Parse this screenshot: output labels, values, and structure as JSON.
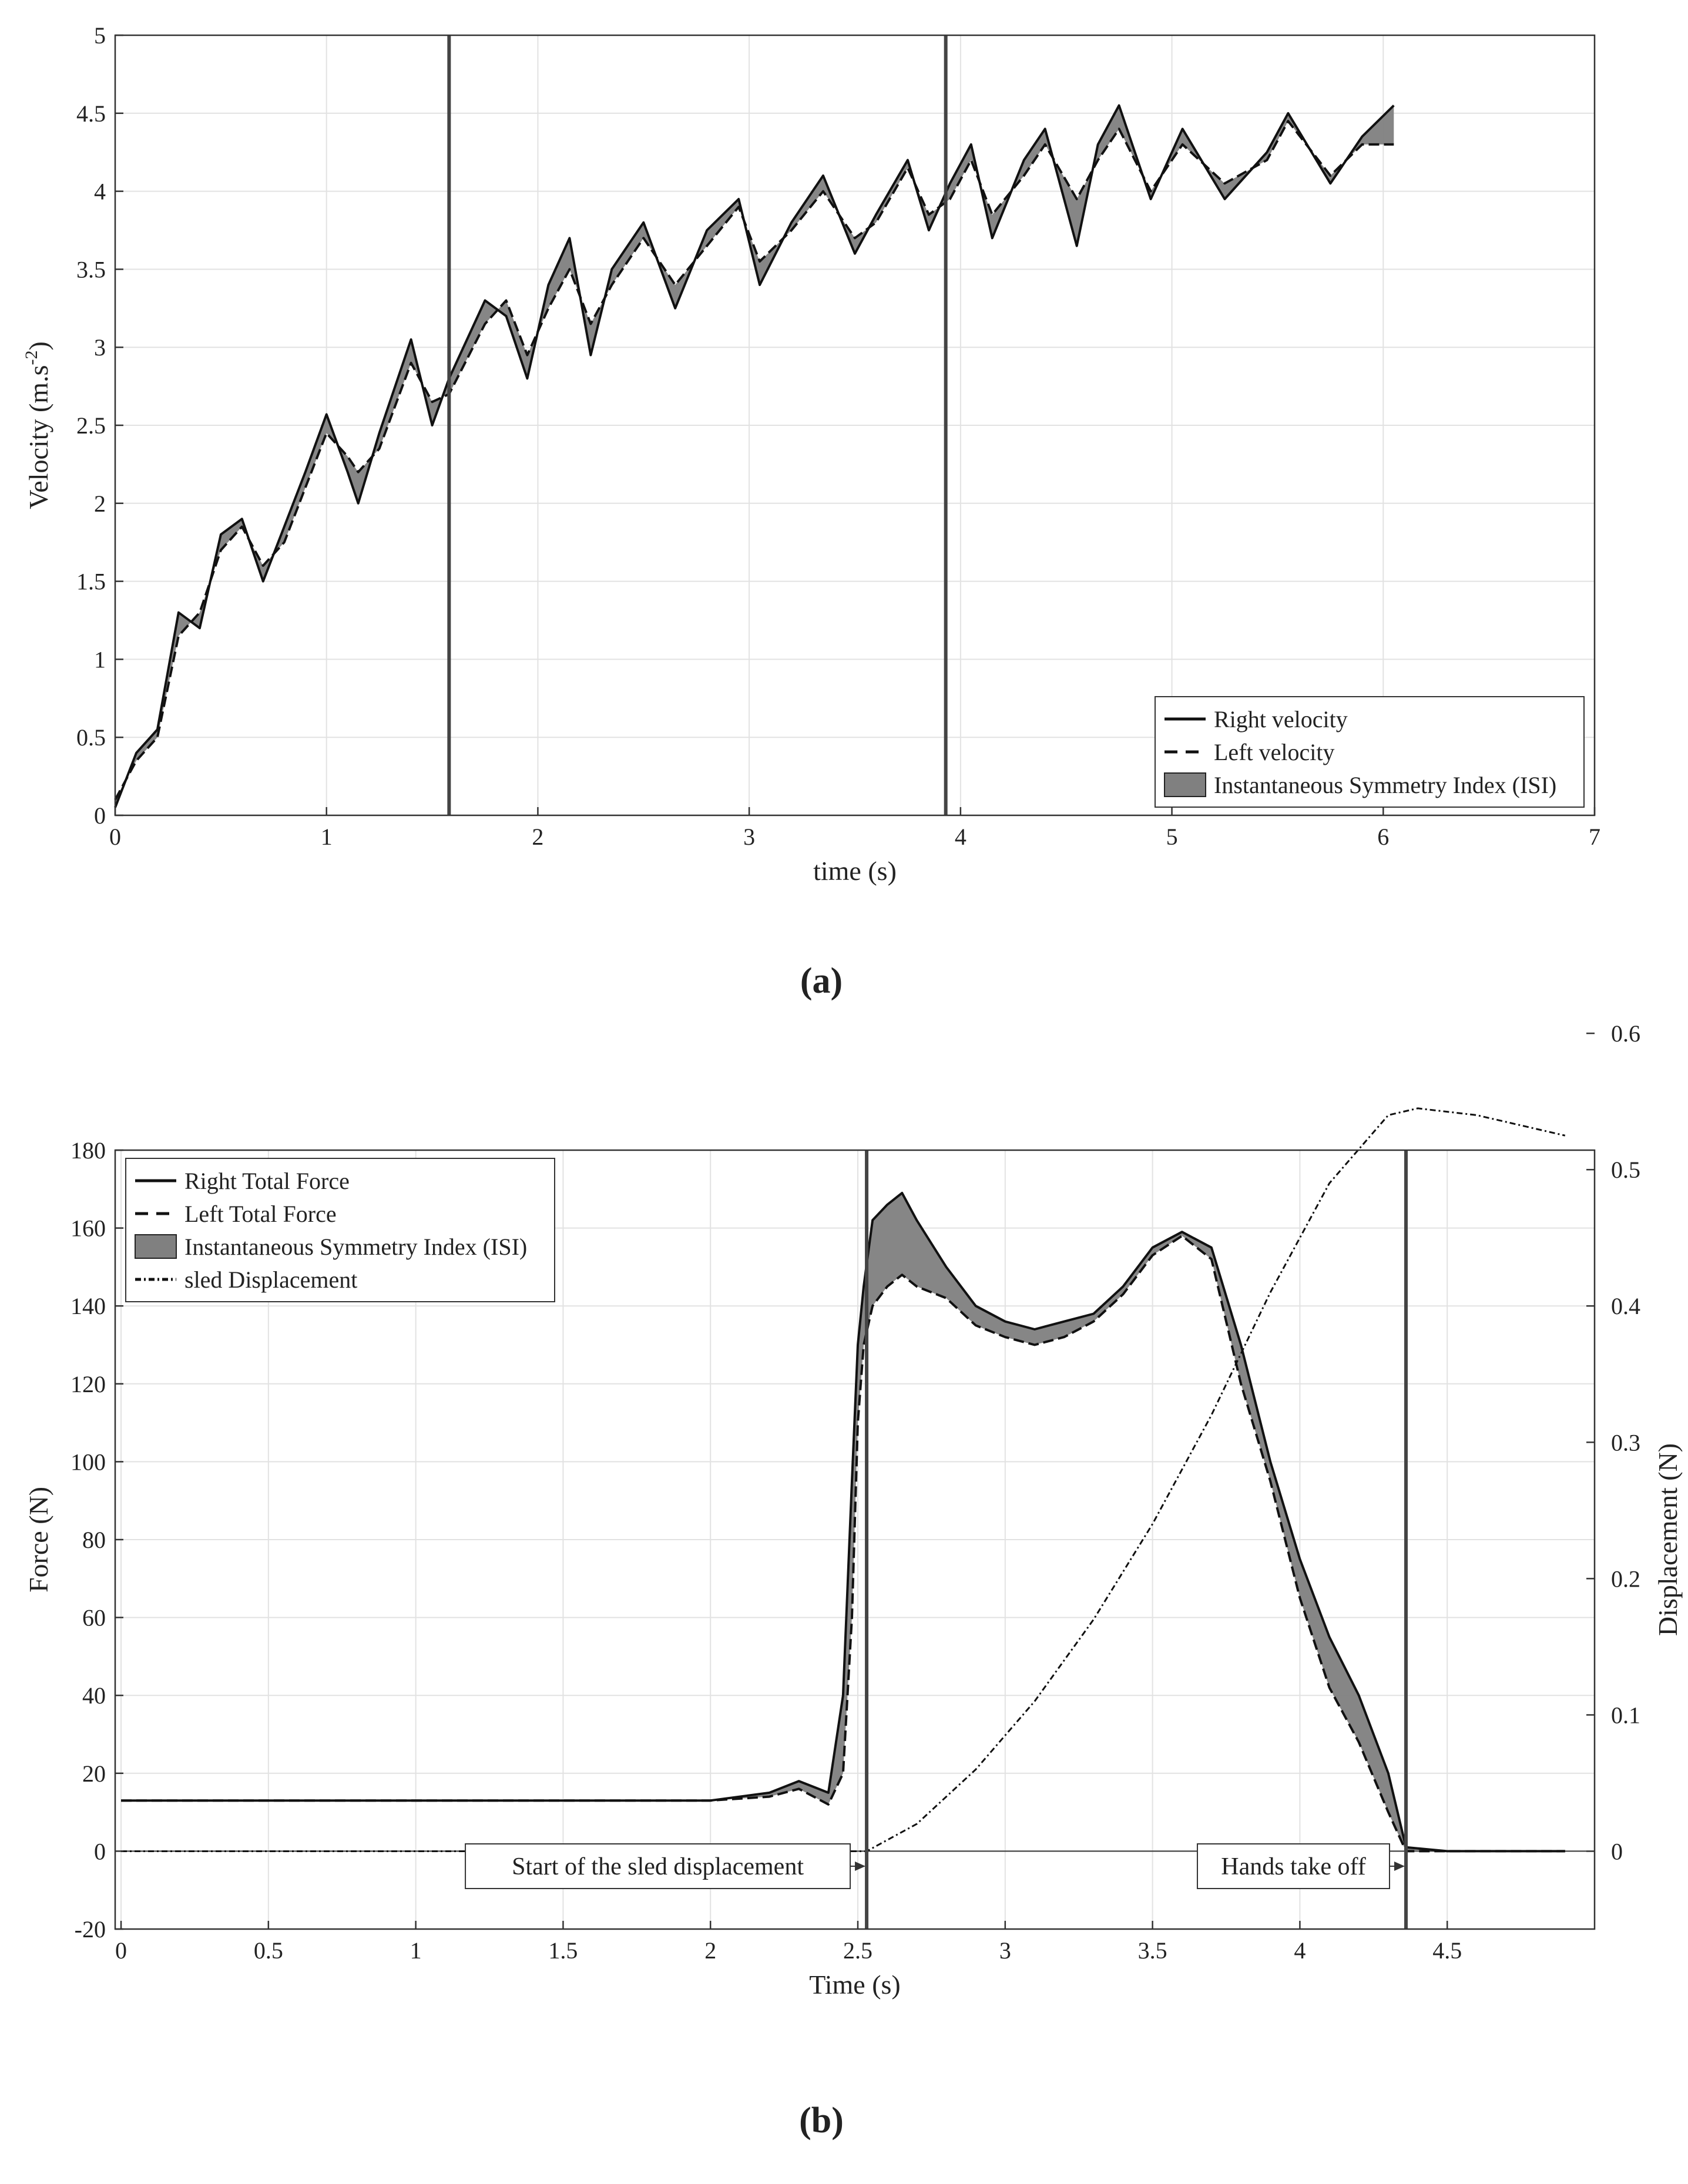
{
  "chart_data": [
    {
      "type": "line",
      "panel_label": "(a)",
      "xlabel": "time (s)",
      "ylabel": "Velocity (m.s",
      "ylabel_superscript": "-2",
      "ylabel_close": ")",
      "xlim": [
        0,
        7
      ],
      "ylim": [
        0,
        5
      ],
      "xticks": [
        0,
        1,
        2,
        3,
        4,
        5,
        6,
        7
      ],
      "yticks": [
        0,
        0.5,
        1,
        1.5,
        2,
        2.5,
        3,
        3.5,
        4,
        4.5,
        5
      ],
      "grid": true,
      "legend_position": "bottom-right",
      "vertical_lines": [
        1.58,
        3.93
      ],
      "series": [
        {
          "name": "Right velocity",
          "style": "solid",
          "x": [
            0,
            0.1,
            0.2,
            0.3,
            0.4,
            0.5,
            0.6,
            0.7,
            0.8,
            0.9,
            1.0,
            1.1,
            1.15,
            1.25,
            1.4,
            1.5,
            1.58,
            1.75,
            1.85,
            1.95,
            2.05,
            2.15,
            2.25,
            2.35,
            2.5,
            2.65,
            2.8,
            2.95,
            3.05,
            3.2,
            3.35,
            3.5,
            3.6,
            3.75,
            3.85,
            3.95,
            4.05,
            4.15,
            4.3,
            4.4,
            4.55,
            4.65,
            4.75,
            4.9,
            5.05,
            5.25,
            5.45,
            5.55,
            5.75,
            5.9,
            6.05
          ],
          "y": [
            0.05,
            0.4,
            0.55,
            1.3,
            1.2,
            1.8,
            1.9,
            1.5,
            1.85,
            2.2,
            2.57,
            2.2,
            2.0,
            2.45,
            3.05,
            2.5,
            2.8,
            3.3,
            3.2,
            2.8,
            3.4,
            3.7,
            2.95,
            3.5,
            3.8,
            3.25,
            3.75,
            3.95,
            3.4,
            3.8,
            4.1,
            3.6,
            3.85,
            4.2,
            3.75,
            4.05,
            4.3,
            3.7,
            4.2,
            4.4,
            3.65,
            4.3,
            4.55,
            3.95,
            4.4,
            3.95,
            4.25,
            4.5,
            4.05,
            4.35,
            4.55
          ]
        },
        {
          "name": "Left velocity",
          "style": "dashed",
          "x": [
            0,
            0.1,
            0.2,
            0.3,
            0.4,
            0.5,
            0.6,
            0.7,
            0.8,
            0.9,
            1.0,
            1.1,
            1.15,
            1.25,
            1.4,
            1.5,
            1.58,
            1.75,
            1.85,
            1.95,
            2.05,
            2.15,
            2.25,
            2.35,
            2.5,
            2.65,
            2.8,
            2.95,
            3.05,
            3.2,
            3.35,
            3.5,
            3.6,
            3.75,
            3.85,
            3.95,
            4.05,
            4.15,
            4.3,
            4.4,
            4.55,
            4.65,
            4.75,
            4.9,
            5.05,
            5.25,
            5.45,
            5.55,
            5.75,
            5.9,
            6.05
          ],
          "y": [
            0.1,
            0.35,
            0.5,
            1.15,
            1.3,
            1.7,
            1.85,
            1.6,
            1.75,
            2.1,
            2.45,
            2.3,
            2.2,
            2.35,
            2.9,
            2.65,
            2.7,
            3.15,
            3.3,
            2.95,
            3.25,
            3.5,
            3.15,
            3.4,
            3.7,
            3.4,
            3.65,
            3.9,
            3.55,
            3.75,
            4.0,
            3.7,
            3.8,
            4.15,
            3.85,
            3.95,
            4.2,
            3.85,
            4.1,
            4.3,
            3.95,
            4.2,
            4.4,
            4.0,
            4.3,
            4.05,
            4.2,
            4.45,
            4.1,
            4.3,
            4.3
          ]
        }
      ],
      "fill_between": {
        "name": "Instantaneous Symmetry Index (ISI)",
        "between": [
          "Right velocity",
          "Left velocity"
        ],
        "color": "#808080"
      }
    },
    {
      "type": "line",
      "panel_label": "(b)",
      "xlabel": "Time (s)",
      "ylabel": "Force (N)",
      "y2label": "Displacement (N)",
      "xlim": [
        -0.02,
        5.0
      ],
      "ylim": [
        -20,
        180
      ],
      "y2lim": [
        -0.0571,
        0.5143
      ],
      "xticks": [
        0,
        0.5,
        1,
        1.5,
        2,
        2.5,
        3,
        3.5,
        4,
        4.5
      ],
      "yticks": [
        -20,
        0,
        20,
        40,
        60,
        80,
        100,
        120,
        140,
        160,
        180
      ],
      "y2ticks": [
        0,
        0.1,
        0.2,
        0.3,
        0.4,
        0.5,
        0.6
      ],
      "grid": true,
      "legend_position": "top-left",
      "vertical_lines": [
        2.53,
        4.36
      ],
      "annotations": [
        {
          "text": "Start of the sled displacement",
          "arrow_to_x": 2.53
        },
        {
          "text": "Hands take off",
          "arrow_to_x": 4.36
        }
      ],
      "series": [
        {
          "name": "Right Total Force",
          "style": "solid",
          "x": [
            0,
            0.5,
            1.0,
            1.5,
            2.0,
            2.2,
            2.3,
            2.4,
            2.45,
            2.48,
            2.5,
            2.52,
            2.55,
            2.6,
            2.65,
            2.7,
            2.8,
            2.9,
            3.0,
            3.1,
            3.2,
            3.3,
            3.4,
            3.5,
            3.6,
            3.7,
            3.8,
            3.9,
            4.0,
            4.1,
            4.2,
            4.3,
            4.36,
            4.5,
            4.7,
            4.9
          ],
          "y": [
            13,
            13,
            13,
            13,
            13,
            15,
            18,
            15,
            40,
            95,
            130,
            145,
            162,
            166,
            169,
            162,
            150,
            140,
            136,
            134,
            136,
            138,
            145,
            155,
            159,
            155,
            130,
            100,
            75,
            55,
            40,
            20,
            1,
            0,
            0,
            0
          ]
        },
        {
          "name": "Left Total Force",
          "style": "dashed",
          "x": [
            0,
            0.5,
            1.0,
            1.5,
            2.0,
            2.2,
            2.3,
            2.4,
            2.45,
            2.48,
            2.5,
            2.52,
            2.55,
            2.6,
            2.65,
            2.7,
            2.8,
            2.9,
            3.0,
            3.1,
            3.2,
            3.3,
            3.4,
            3.5,
            3.6,
            3.7,
            3.8,
            3.9,
            4.0,
            4.1,
            4.2,
            4.3,
            4.36,
            4.5,
            4.7,
            4.9
          ],
          "y": [
            13,
            13,
            13,
            13,
            13,
            14,
            16,
            12,
            20,
            60,
            110,
            130,
            140,
            145,
            148,
            145,
            142,
            135,
            132,
            130,
            132,
            136,
            143,
            153,
            158,
            152,
            120,
            95,
            65,
            42,
            28,
            10,
            0,
            0,
            0,
            0
          ]
        },
        {
          "name": "sled Displacement",
          "style": "dashdot",
          "axis": "right",
          "x": [
            0,
            1.0,
            2.0,
            2.53,
            2.7,
            2.9,
            3.1,
            3.3,
            3.5,
            3.7,
            3.9,
            4.1,
            4.3,
            4.4,
            4.6,
            4.9
          ],
          "y": [
            0,
            0,
            0,
            0,
            0.02,
            0.06,
            0.11,
            0.17,
            0.24,
            0.32,
            0.41,
            0.49,
            0.54,
            0.545,
            0.54,
            0.525
          ]
        }
      ],
      "fill_between": {
        "name": "Instantaneous Symmetry Index (ISI)",
        "between": [
          "Right Total Force",
          "Left Total Force"
        ],
        "color": "#808080"
      }
    }
  ]
}
